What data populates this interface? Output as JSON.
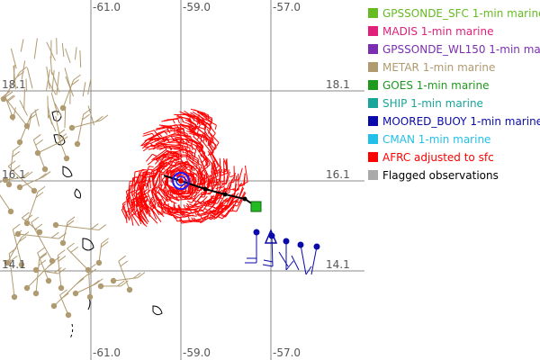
{
  "map": {
    "lon_labels_top": [
      "-61.0",
      "-59.0",
      "-57.0"
    ],
    "lon_labels_bottom": [
      "-61.0",
      "-59.0",
      "-57.0"
    ],
    "lat_labels": [
      "18.1",
      "16.1",
      "14.1"
    ],
    "lat_labels_left": [
      "18.1",
      "16.1",
      "14.1"
    ]
  },
  "legend": {
    "items": [
      {
        "label": "GPSSONDE_SFC 1-min marine",
        "color": "#66bb22"
      },
      {
        "label": "MADIS 1-min marine",
        "color": "#e0207a"
      },
      {
        "label": "GPSSONDE_WL150 1-min marine",
        "color": "#7a2fb0"
      },
      {
        "label": "METAR 1-min marine",
        "color": "#b09a70"
      },
      {
        "label": "GOES 1-min marine",
        "color": "#1f9a1f"
      },
      {
        "label": "SHIP 1-min marine",
        "color": "#1aa59a"
      },
      {
        "label": "MOORED_BUOY 1-min marine",
        "color": "#0a0aaa"
      },
      {
        "label": "CMAN 1-min marine",
        "color": "#22c0e8"
      },
      {
        "label": "AFRC adjusted to sfc",
        "color": "#ff0000"
      },
      {
        "label": "Flagged observations",
        "color": "#aaaaaa"
      }
    ]
  },
  "colors": {
    "grid": "#888888",
    "metar": "#b09a70",
    "afrc": "#ff0000",
    "buoy": "#0a0aaa",
    "goes_square": "#22bb22",
    "track": "#000000",
    "center_ring": "#1a1aff"
  }
}
